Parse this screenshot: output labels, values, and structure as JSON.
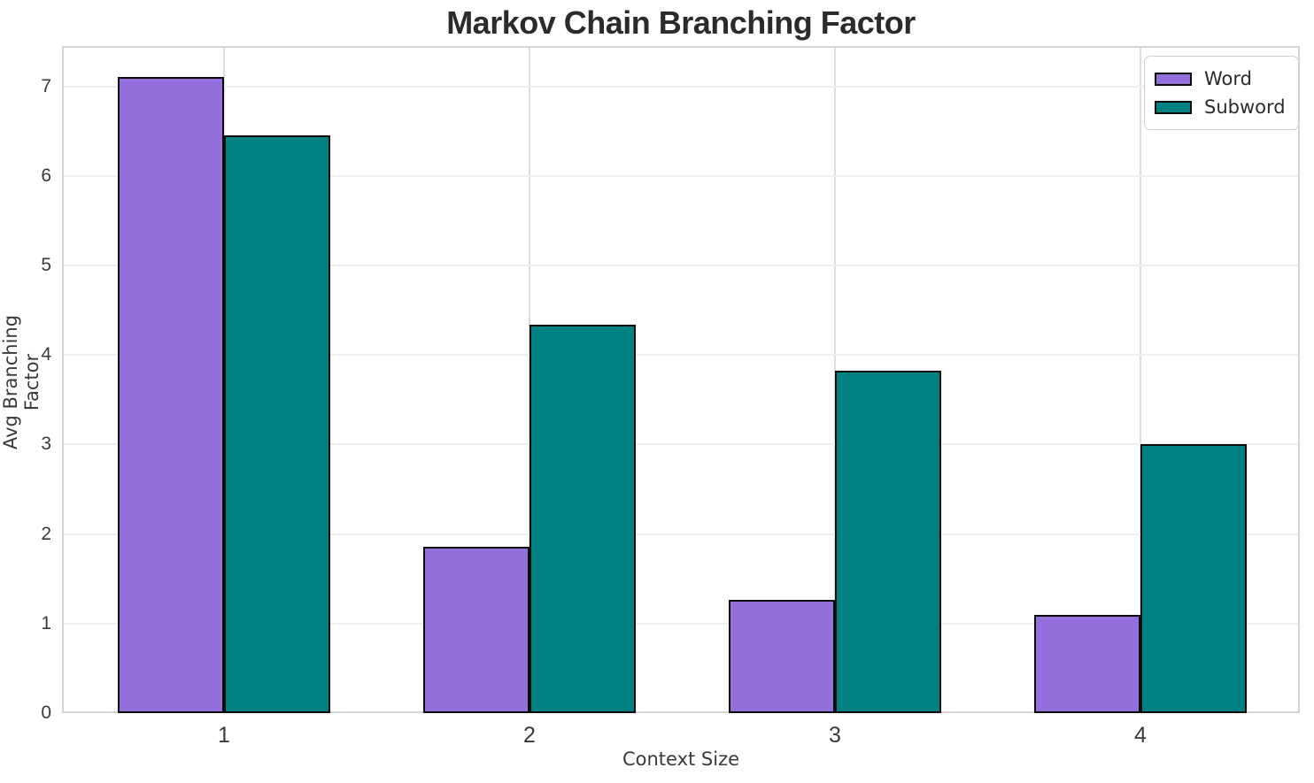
{
  "title": "Markov Chain Branching Factor",
  "chart_data": {
    "type": "bar",
    "title": "Markov Chain Branching Factor",
    "xlabel": "Context Size",
    "ylabel": "Avg Branching Factor",
    "categories": [
      "1",
      "2",
      "3",
      "4"
    ],
    "series": [
      {
        "name": "Word",
        "color": "#9370db",
        "values": [
          7.1,
          1.86,
          1.26,
          1.1
        ]
      },
      {
        "name": "Subword",
        "color": "#008080",
        "values": [
          6.45,
          4.34,
          3.82,
          3.0
        ]
      }
    ],
    "ylim": [
      0,
      7.45
    ],
    "yticks": [
      0,
      1,
      2,
      3,
      4,
      5,
      6,
      7
    ],
    "grid": true,
    "legend_position": "upper right",
    "bar_edge_color": "#0c0c0c",
    "background_color": "#ffffff"
  }
}
